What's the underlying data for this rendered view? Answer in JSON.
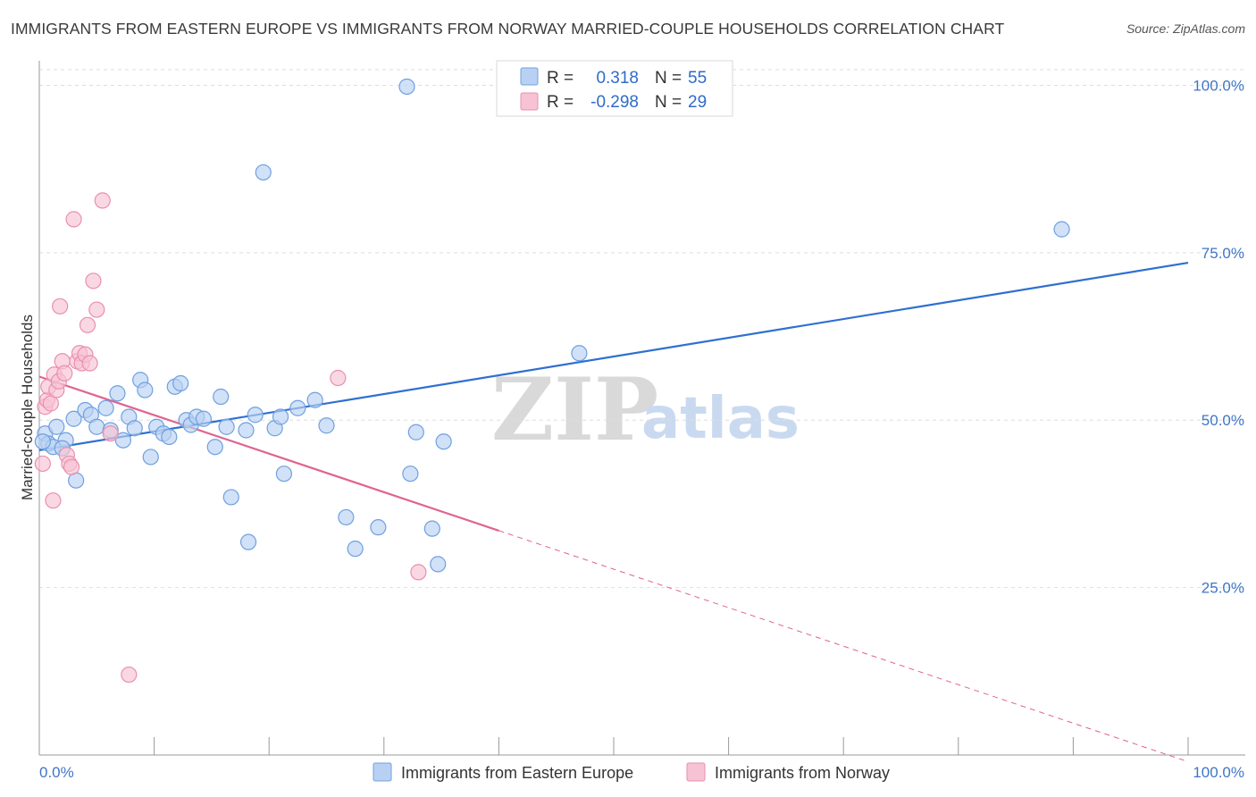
{
  "title": "IMMIGRANTS FROM EASTERN EUROPE VS IMMIGRANTS FROM NORWAY MARRIED-COUPLE HOUSEHOLDS CORRELATION CHART",
  "source": "Source: ZipAtlas.com",
  "watermark": {
    "zip": "ZIP",
    "atlas": "atlas"
  },
  "colors": {
    "blue": "#6fa0e0",
    "blue_fill": "#b8d1f3",
    "blue_line": "#2f6fd1",
    "pink": "#e98fae",
    "pink_fill": "#f7c3d4",
    "pink_line": "#e0638f"
  },
  "legend": {
    "rows": [
      {
        "r_label": "R =",
        "r_value": "0.318",
        "n_label": "N =",
        "n_value": "55"
      },
      {
        "r_label": "R =",
        "r_value": "-0.298",
        "n_label": "N =",
        "n_value": "29"
      }
    ]
  },
  "bottom_legend": {
    "items": [
      "Immigrants from Eastern Europe",
      "Immigrants from Norway"
    ]
  },
  "chart_data": {
    "type": "scatter",
    "ylabel": "Married-couple Households",
    "xlabel": "",
    "xlim": [
      0,
      100
    ],
    "ylim": [
      0,
      105
    ],
    "x_tick_labels": [
      "0.0%",
      "100.0%"
    ],
    "y_ticks": [
      25,
      50,
      75,
      100
    ],
    "y_tick_labels": [
      "25.0%",
      "50.0%",
      "75.0%",
      "100.0%"
    ],
    "grid": true,
    "series": [
      {
        "name": "Immigrants from Eastern Europe",
        "points": [
          [
            0.5,
            48.0
          ],
          [
            0.8,
            46.5
          ],
          [
            1.5,
            49.0
          ],
          [
            2.3,
            47.0
          ],
          [
            3.0,
            50.2
          ],
          [
            3.2,
            41.0
          ],
          [
            4.0,
            51.5
          ],
          [
            4.5,
            50.8
          ],
          [
            5.0,
            49.0
          ],
          [
            5.8,
            51.8
          ],
          [
            6.2,
            48.5
          ],
          [
            6.8,
            54.0
          ],
          [
            7.3,
            47.0
          ],
          [
            7.8,
            50.5
          ],
          [
            8.3,
            48.8
          ],
          [
            8.8,
            56.0
          ],
          [
            9.2,
            54.5
          ],
          [
            9.7,
            44.5
          ],
          [
            10.2,
            49.0
          ],
          [
            10.8,
            48.0
          ],
          [
            11.3,
            47.5
          ],
          [
            11.8,
            55.0
          ],
          [
            12.3,
            55.5
          ],
          [
            12.8,
            50.0
          ],
          [
            13.2,
            49.3
          ],
          [
            13.7,
            50.5
          ],
          [
            14.3,
            50.2
          ],
          [
            15.3,
            46.0
          ],
          [
            15.8,
            53.5
          ],
          [
            16.3,
            49.0
          ],
          [
            16.7,
            38.5
          ],
          [
            18.0,
            48.5
          ],
          [
            18.2,
            31.8
          ],
          [
            18.8,
            50.8
          ],
          [
            19.5,
            87.0
          ],
          [
            20.5,
            48.8
          ],
          [
            21.3,
            42.0
          ],
          [
            21.0,
            50.5
          ],
          [
            22.5,
            51.8
          ],
          [
            24.0,
            53.0
          ],
          [
            25.0,
            49.2
          ],
          [
            26.7,
            35.5
          ],
          [
            27.5,
            30.8
          ],
          [
            29.5,
            34.0
          ],
          [
            32.0,
            99.8
          ],
          [
            32.3,
            42.0
          ],
          [
            32.8,
            48.2
          ],
          [
            34.2,
            33.8
          ],
          [
            34.7,
            28.5
          ],
          [
            35.2,
            46.8
          ],
          [
            47.0,
            60.0
          ],
          [
            89.0,
            78.5
          ],
          [
            1.2,
            46.0
          ],
          [
            2.0,
            45.8
          ],
          [
            0.3,
            46.8
          ]
        ],
        "trend": {
          "x": [
            0,
            100
          ],
          "y": [
            45.5,
            73.5
          ]
        }
      },
      {
        "name": "Immigrants from Norway",
        "points": [
          [
            0.3,
            43.5
          ],
          [
            0.5,
            52.0
          ],
          [
            0.7,
            53.0
          ],
          [
            0.8,
            55.0
          ],
          [
            1.0,
            52.5
          ],
          [
            1.2,
            38.0
          ],
          [
            1.3,
            56.8
          ],
          [
            1.5,
            54.5
          ],
          [
            1.7,
            55.8
          ],
          [
            1.8,
            67.0
          ],
          [
            2.0,
            58.8
          ],
          [
            2.2,
            57.0
          ],
          [
            2.4,
            44.8
          ],
          [
            2.6,
            43.5
          ],
          [
            2.8,
            43.0
          ],
          [
            3.0,
            80.0
          ],
          [
            3.3,
            58.8
          ],
          [
            3.5,
            60.0
          ],
          [
            3.7,
            58.5
          ],
          [
            4.0,
            59.8
          ],
          [
            4.2,
            64.2
          ],
          [
            4.4,
            58.5
          ],
          [
            4.7,
            70.8
          ],
          [
            5.0,
            66.5
          ],
          [
            5.5,
            82.8
          ],
          [
            6.2,
            48.0
          ],
          [
            7.8,
            12.0
          ],
          [
            26.0,
            56.3
          ],
          [
            33.0,
            27.3
          ]
        ],
        "trend": {
          "x": [
            0,
            40
          ],
          "y": [
            56.5,
            33.5
          ]
        },
        "trend_dashed": {
          "x": [
            40,
            100
          ],
          "y": [
            33.5,
            -1.0
          ]
        }
      }
    ]
  }
}
